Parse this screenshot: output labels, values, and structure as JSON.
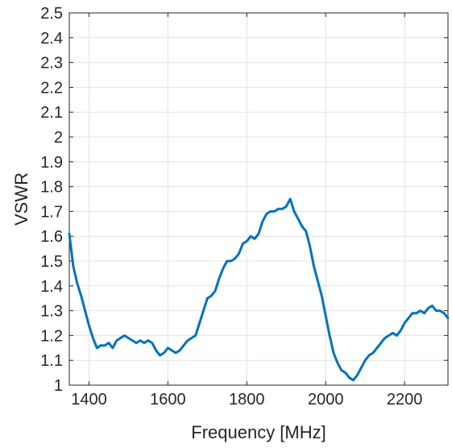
{
  "chart_data": {
    "type": "line",
    "xlabel": "Frequency [MHz]",
    "ylabel": "VSWR",
    "xlim": [
      1350,
      2310
    ],
    "ylim": [
      1,
      2.5
    ],
    "xticks": [
      1400,
      1600,
      1800,
      2000,
      2200
    ],
    "yticks": [
      1,
      1.1,
      1.2,
      1.3,
      1.4,
      1.5,
      1.6,
      1.7,
      1.8,
      1.9,
      2,
      2.1,
      2.2,
      2.3,
      2.4,
      2.5
    ],
    "grid": true,
    "series": [
      {
        "color": "#0072bd",
        "x": [
          1350,
          1360,
          1370,
          1380,
          1390,
          1400,
          1410,
          1420,
          1430,
          1440,
          1450,
          1460,
          1470,
          1480,
          1490,
          1500,
          1510,
          1520,
          1530,
          1540,
          1550,
          1560,
          1570,
          1580,
          1590,
          1600,
          1610,
          1620,
          1630,
          1640,
          1650,
          1660,
          1670,
          1680,
          1690,
          1700,
          1710,
          1720,
          1730,
          1740,
          1750,
          1760,
          1770,
          1780,
          1790,
          1800,
          1810,
          1820,
          1830,
          1840,
          1850,
          1860,
          1870,
          1880,
          1890,
          1900,
          1910,
          1920,
          1930,
          1940,
          1950,
          1960,
          1970,
          1980,
          1990,
          2000,
          2010,
          2020,
          2030,
          2040,
          2050,
          2060,
          2070,
          2080,
          2090,
          2100,
          2110,
          2120,
          2130,
          2140,
          2150,
          2160,
          2170,
          2180,
          2190,
          2200,
          2210,
          2220,
          2230,
          2240,
          2250,
          2260,
          2270,
          2280,
          2290,
          2300,
          2310
        ],
        "y": [
          1.61,
          1.48,
          1.41,
          1.36,
          1.3,
          1.24,
          1.19,
          1.15,
          1.16,
          1.16,
          1.17,
          1.15,
          1.18,
          1.19,
          1.2,
          1.19,
          1.18,
          1.17,
          1.18,
          1.17,
          1.18,
          1.17,
          1.14,
          1.12,
          1.13,
          1.15,
          1.14,
          1.13,
          1.14,
          1.16,
          1.18,
          1.19,
          1.2,
          1.25,
          1.3,
          1.35,
          1.36,
          1.38,
          1.43,
          1.47,
          1.5,
          1.5,
          1.51,
          1.53,
          1.57,
          1.58,
          1.6,
          1.59,
          1.61,
          1.66,
          1.69,
          1.7,
          1.7,
          1.71,
          1.71,
          1.72,
          1.75,
          1.7,
          1.67,
          1.64,
          1.62,
          1.56,
          1.48,
          1.42,
          1.36,
          1.28,
          1.2,
          1.13,
          1.09,
          1.06,
          1.05,
          1.03,
          1.02,
          1.04,
          1.07,
          1.1,
          1.12,
          1.13,
          1.15,
          1.17,
          1.19,
          1.2,
          1.21,
          1.2,
          1.22,
          1.25,
          1.27,
          1.29,
          1.29,
          1.3,
          1.29,
          1.31,
          1.32,
          1.3,
          1.3,
          1.29,
          1.27
        ]
      }
    ]
  }
}
